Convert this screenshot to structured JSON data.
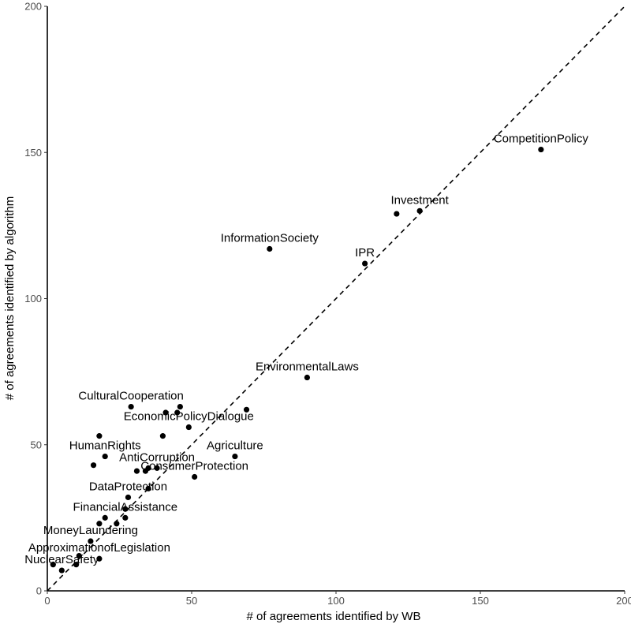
{
  "chart_data": {
    "type": "scatter",
    "title": "",
    "xlabel": "# of agreements identified by WB",
    "ylabel": "# of agreements identified by algorithm",
    "xlim": [
      0,
      200
    ],
    "ylim": [
      0,
      200
    ],
    "x_ticks": [
      "0",
      "50",
      "100",
      "150",
      "200"
    ],
    "y_ticks": [
      "0",
      "50",
      "100",
      "150",
      "200"
    ],
    "grid": false,
    "reference_line": {
      "style": "dashed",
      "slope": 1,
      "intercept": 0
    },
    "points": [
      {
        "x": 171,
        "y": 151,
        "label": "CompetitionPolicy"
      },
      {
        "x": 129,
        "y": 130,
        "label": "Investment"
      },
      {
        "x": 121,
        "y": 129,
        "label": ""
      },
      {
        "x": 77,
        "y": 117,
        "label": "InformationSociety"
      },
      {
        "x": 110,
        "y": 112,
        "label": "IPR"
      },
      {
        "x": 90,
        "y": 73,
        "label": "EnvironmentalLaws"
      },
      {
        "x": 29,
        "y": 63,
        "label": "CulturalCooperation"
      },
      {
        "x": 46,
        "y": 63,
        "label": ""
      },
      {
        "x": 69,
        "y": 62,
        "label": ""
      },
      {
        "x": 41,
        "y": 61,
        "label": ""
      },
      {
        "x": 45,
        "y": 61,
        "label": ""
      },
      {
        "x": 49,
        "y": 56,
        "label": "EconomicPolicyDialogue"
      },
      {
        "x": 18,
        "y": 53,
        "label": ""
      },
      {
        "x": 40,
        "y": 53,
        "label": ""
      },
      {
        "x": 20,
        "y": 46,
        "label": "HumanRights"
      },
      {
        "x": 65,
        "y": 46,
        "label": "Agriculture"
      },
      {
        "x": 16,
        "y": 43,
        "label": ""
      },
      {
        "x": 38,
        "y": 42,
        "label": "AntiCorruption"
      },
      {
        "x": 31,
        "y": 41,
        "label": ""
      },
      {
        "x": 34,
        "y": 41,
        "label": ""
      },
      {
        "x": 35,
        "y": 42,
        "label": ""
      },
      {
        "x": 51,
        "y": 39,
        "label": "ConsumerProtection"
      },
      {
        "x": 35,
        "y": 35,
        "label": ""
      },
      {
        "x": 28,
        "y": 32,
        "label": "DataProtection"
      },
      {
        "x": 27,
        "y": 28,
        "label": ""
      },
      {
        "x": 27,
        "y": 25,
        "label": "FinancialAssistance"
      },
      {
        "x": 20,
        "y": 25,
        "label": ""
      },
      {
        "x": 18,
        "y": 23,
        "label": ""
      },
      {
        "x": 24,
        "y": 23,
        "label": ""
      },
      {
        "x": 15,
        "y": 17,
        "label": "MoneyLaundering"
      },
      {
        "x": 11,
        "y": 12,
        "label": ""
      },
      {
        "x": 18,
        "y": 11,
        "label": "ApproximationofLegislation"
      },
      {
        "x": 10,
        "y": 9,
        "label": ""
      },
      {
        "x": 2,
        "y": 9,
        "label": ""
      },
      {
        "x": 5,
        "y": 7,
        "label": "NuclearSafety"
      }
    ]
  }
}
